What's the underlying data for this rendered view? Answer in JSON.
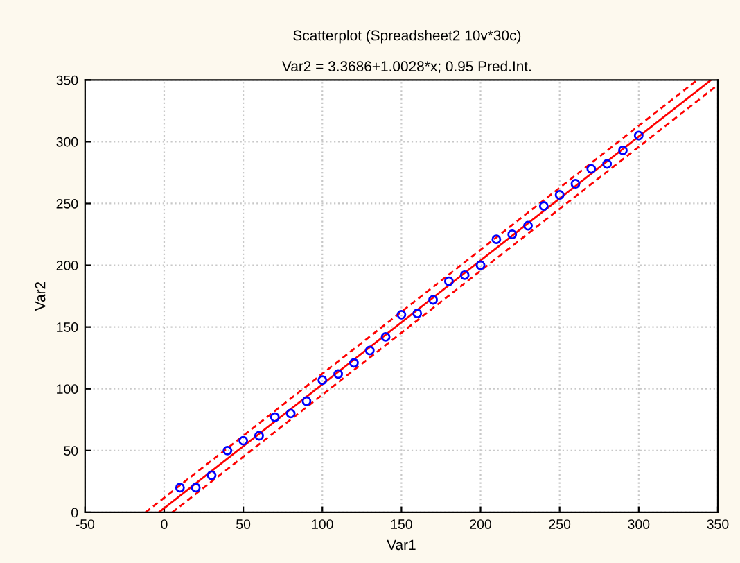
{
  "chart_data": {
    "type": "scatter",
    "title": "Scatterplot (Spreadsheet2 10v*30c)",
    "subtitle": "Var2 = 3.3686+1.0028*x; 0.95 Pred.Int.",
    "xlabel": "Var1",
    "ylabel": "Var2",
    "series": [
      {
        "color": "#0000ff",
        "marker": "circle",
        "x": [
          10,
          20,
          30,
          40,
          50,
          60,
          70,
          80,
          90,
          100,
          110,
          120,
          130,
          140,
          150,
          160,
          170,
          180,
          190,
          200,
          210,
          220,
          230,
          240,
          250,
          260,
          270,
          280,
          290,
          300
        ],
        "values": [
          20,
          20,
          30,
          50,
          58,
          62,
          77,
          80,
          90,
          107,
          112,
          121,
          131,
          142,
          160,
          161,
          172,
          187,
          192,
          200,
          221,
          225,
          232,
          248,
          257,
          266,
          278,
          282,
          293,
          305
        ]
      },
      {
        "type": "line",
        "color": "#ff0000",
        "line_style": "solid",
        "x": [
          -3.36,
          345.7
        ],
        "values": [
          0,
          350
        ]
      },
      {
        "type": "line",
        "color": "#ff0000",
        "line_style": "dashed",
        "x": [
          -11.8,
          337
        ],
        "values": [
          0,
          350
        ]
      },
      {
        "type": "line",
        "color": "#ff0000",
        "line_style": "dashed",
        "x": [
          5.1,
          350
        ],
        "values": [
          0,
          346
        ]
      }
    ],
    "xlim": [
      -50,
      350
    ],
    "ylim": [
      0,
      350
    ],
    "xticks": [
      -50,
      0,
      50,
      100,
      150,
      200,
      250,
      300,
      350
    ],
    "yticks": [
      0,
      50,
      100,
      150,
      200,
      250,
      300,
      350
    ],
    "grid": true
  }
}
